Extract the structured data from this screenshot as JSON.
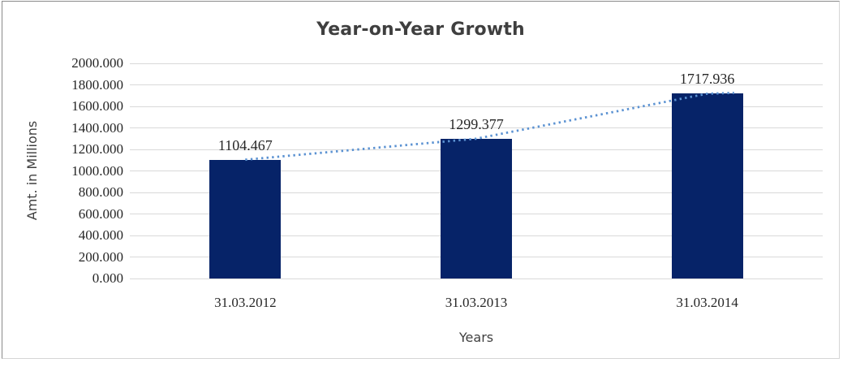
{
  "chart_data": {
    "type": "bar",
    "title": "Year-on-Year Growth",
    "xlabel": "Years",
    "ylabel": "Amt. in Millions",
    "categories": [
      "31.03.2012",
      "31.03.2013",
      "31.03.2014"
    ],
    "series": [
      {
        "name": "Amt. in Millions",
        "type": "bar",
        "values": [
          1104.467,
          1299.377,
          1717.936
        ]
      }
    ],
    "data_labels": [
      "1104.467",
      "1299.377",
      "1717.936"
    ],
    "trendline": {
      "style": "dotted",
      "through_values": [
        1104.467,
        1299.377,
        1717.936
      ]
    },
    "ylim": [
      0,
      2000
    ],
    "ytick_step": 200,
    "ytick_labels": [
      "0.000",
      "200.000",
      "400.000",
      "600.000",
      "800.000",
      "1000.000",
      "1200.000",
      "1400.000",
      "1600.000",
      "1800.000",
      "2000.000"
    ],
    "grid": true,
    "legend": "none",
    "colors": {
      "bar": "#062368",
      "trendline": "#5b92d2",
      "gridline": "#d9d9d9",
      "number_text": "#262626",
      "title_text": "#3f3f3f",
      "frame_border_dark": "#8a8a8a",
      "frame_border_light": "#d6d6d6"
    }
  }
}
